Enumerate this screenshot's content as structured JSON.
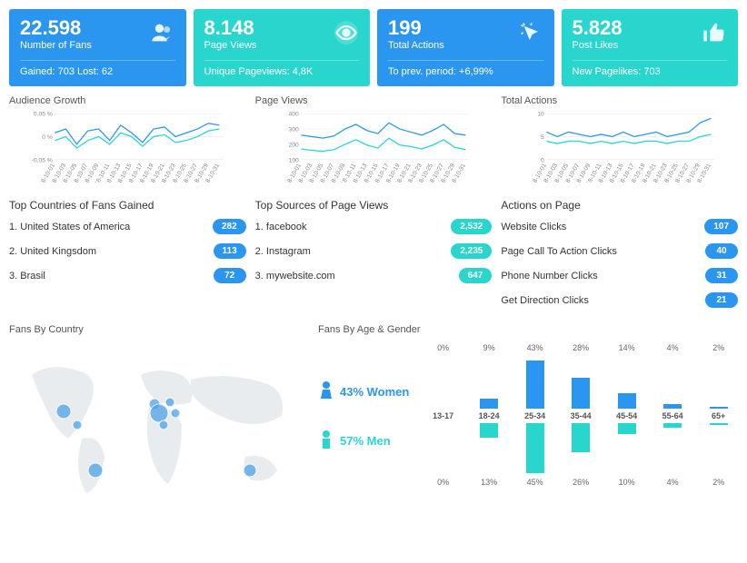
{
  "colors": {
    "blue": "#2a96f0",
    "teal": "#29d6cd",
    "text": "#444444",
    "grid": "#e0e0e0",
    "map_land": "#e9ecef",
    "map_bubble": "#4da3e8"
  },
  "kpis": [
    {
      "value": "22.598",
      "label": "Number of Fans",
      "sub": "Gained: 703   Lost: 62",
      "color": "#2a96f0",
      "icon": "people"
    },
    {
      "value": "8.148",
      "label": "Page Views",
      "sub": "Unique Pageviews: 4,8K",
      "color": "#29d6cd",
      "icon": "eye"
    },
    {
      "value": "199",
      "label": "Total Actions",
      "sub": "To prev. period: +6,99%",
      "color": "#2a96f0",
      "icon": "cursor"
    },
    {
      "value": "5.828",
      "label": "Post Likes",
      "sub": "New Pagelikes: 703",
      "color": "#29d6cd",
      "icon": "thumb"
    }
  ],
  "charts": [
    {
      "title": "Audience Growth",
      "type": "line",
      "y_labels": [
        "0,05 %",
        "0 %",
        "-0,05 %"
      ],
      "ylim": [
        -0.06,
        0.06
      ],
      "series": [
        {
          "color": "#2a96f0",
          "values": [
            0.01,
            0.02,
            -0.02,
            0.015,
            0.02,
            -0.01,
            0.03,
            0.01,
            -0.015,
            0.02,
            0.025,
            0.0,
            0.01,
            0.02,
            0.035,
            0.03
          ]
        },
        {
          "color": "#29d6cd",
          "values": [
            -0.01,
            0.0,
            -0.03,
            -0.01,
            0.0,
            -0.02,
            0.01,
            0.0,
            -0.025,
            0.0,
            0.005,
            -0.015,
            -0.01,
            0.0,
            0.015,
            0.02
          ]
        }
      ],
      "x_labels": [
        "2018-10-01",
        "2018-10-03",
        "2018-10-05",
        "2018-10-07",
        "2018-10-09",
        "2018-10-11",
        "2018-10-13",
        "2018-10-15",
        "2018-10-17",
        "2018-10-19",
        "2018-10-21",
        "2018-10-23",
        "2018-10-25",
        "2018-10-27",
        "2018-10-29",
        "2018-10-31"
      ]
    },
    {
      "title": "Page Views",
      "type": "line",
      "y_labels": [
        "400",
        "300",
        "200",
        "100"
      ],
      "ylim": [
        100,
        400
      ],
      "series": [
        {
          "color": "#2a96f0",
          "values": [
            260,
            250,
            240,
            255,
            300,
            330,
            290,
            270,
            340,
            300,
            280,
            260,
            290,
            330,
            270,
            260
          ]
        },
        {
          "color": "#29d6cd",
          "values": [
            170,
            160,
            155,
            165,
            200,
            230,
            195,
            175,
            240,
            195,
            185,
            170,
            195,
            230,
            180,
            165
          ]
        }
      ],
      "x_labels": [
        "2018-10-01",
        "2018-10-03",
        "2018-10-05",
        "2018-10-07",
        "2018-10-09",
        "2018-10-11",
        "2018-10-13",
        "2018-10-15",
        "2018-10-17",
        "2018-10-19",
        "2018-10-21",
        "2018-10-23",
        "2018-10-25",
        "2018-10-27",
        "2018-10-29",
        "2018-10-31"
      ]
    },
    {
      "title": "Total Actions",
      "type": "line",
      "y_labels": [
        "10",
        "5",
        "0"
      ],
      "ylim": [
        0,
        10
      ],
      "series": [
        {
          "color": "#2a96f0",
          "values": [
            6,
            5,
            6,
            5.5,
            5,
            5.5,
            5,
            6,
            5,
            5.5,
            6,
            5,
            5.5,
            6,
            8,
            9
          ]
        },
        {
          "color": "#29d6cd",
          "values": [
            4,
            3.5,
            4,
            4,
            3.5,
            4,
            3.5,
            4,
            3.5,
            4,
            4,
            3.5,
            4,
            4,
            5,
            5.5
          ]
        }
      ],
      "x_labels": [
        "2018-10-01",
        "2018-10-03",
        "2018-10-05",
        "2018-10-07",
        "2018-10-09",
        "2018-10-11",
        "2018-10-13",
        "2018-10-15",
        "2018-10-17",
        "2018-10-19",
        "2018-10-21",
        "2018-10-23",
        "2018-10-25",
        "2018-10-27",
        "2018-10-29",
        "2018-10-31"
      ]
    }
  ],
  "lists": [
    {
      "title": "Top Countries of Fans Gained",
      "badge_color": "#2a96f0",
      "items": [
        {
          "label": "1. United States of America",
          "value": "282"
        },
        {
          "label": "2. United Kingsdom",
          "value": "113"
        },
        {
          "label": "3. Brasil",
          "value": "72"
        }
      ]
    },
    {
      "title": "Top Sources of Page Views",
      "badge_color": "#29d6cd",
      "items": [
        {
          "label": "1. facebook",
          "value": "2,532"
        },
        {
          "label": "2. Instagram",
          "value": "2,235"
        },
        {
          "label": "3. mywebsite.com",
          "value": "647"
        }
      ]
    },
    {
      "title": "Actions on Page",
      "badge_color": "#2a96f0",
      "items": [
        {
          "label": "Website Clicks",
          "value": "107"
        },
        {
          "label": "Page Call To Action Clicks",
          "value": "40"
        },
        {
          "label": "Phone Number Clicks",
          "value": "31"
        },
        {
          "label": "Get Direction Clicks",
          "value": "21"
        }
      ]
    }
  ],
  "map": {
    "title": "Fans By Country",
    "bubbles": [
      {
        "x": 55,
        "y": 80,
        "r": 8
      },
      {
        "x": 70,
        "y": 95,
        "r": 5
      },
      {
        "x": 90,
        "y": 145,
        "r": 8
      },
      {
        "x": 155,
        "y": 72,
        "r": 6
      },
      {
        "x": 160,
        "y": 82,
        "r": 10
      },
      {
        "x": 172,
        "y": 70,
        "r": 5
      },
      {
        "x": 178,
        "y": 82,
        "r": 5
      },
      {
        "x": 165,
        "y": 95,
        "r": 5
      },
      {
        "x": 260,
        "y": 145,
        "r": 7
      }
    ]
  },
  "demographics": {
    "title": "Fans By Age & Gender",
    "women": {
      "label": "43% Women",
      "color": "#2a96f0"
    },
    "men": {
      "label": "57% Men",
      "color": "#29d6cd"
    },
    "categories": [
      "13-17",
      "18-24",
      "25-34",
      "35-44",
      "45-54",
      "55-64",
      "65+"
    ],
    "women_pct": [
      0,
      9,
      43,
      28,
      14,
      4,
      2
    ],
    "men_pct": [
      0,
      13,
      45,
      26,
      10,
      4,
      2
    ]
  }
}
